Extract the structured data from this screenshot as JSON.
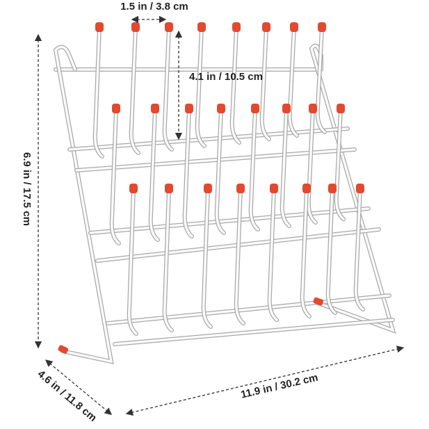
{
  "dimensions": {
    "peg_spacing": "1.5 in / 3.8 cm",
    "peg_height": "4.1 in / 10.5 cm",
    "height": "6.9 in / 17.5 cm",
    "depth": "4.6 in / 11.8 cm",
    "width": "11.9 in / 30.2 cm"
  }
}
